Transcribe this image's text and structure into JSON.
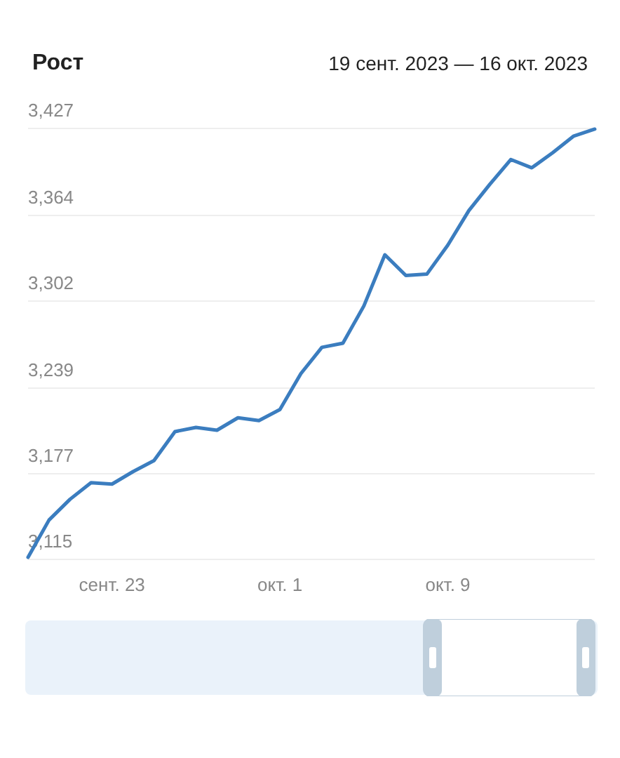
{
  "chart_data": {
    "type": "line",
    "title": "Рост",
    "subtitle": "19 сент. 2023 — 16 окт. 2023",
    "x": [
      "2023-09-19",
      "2023-09-20",
      "2023-09-21",
      "2023-09-22",
      "2023-09-23",
      "2023-09-24",
      "2023-09-25",
      "2023-09-26",
      "2023-09-27",
      "2023-09-28",
      "2023-09-29",
      "2023-09-30",
      "2023-10-01",
      "2023-10-02",
      "2023-10-03",
      "2023-10-04",
      "2023-10-05",
      "2023-10-06",
      "2023-10-07",
      "2023-10-08",
      "2023-10-09",
      "2023-10-10",
      "2023-10-11",
      "2023-10-12",
      "2023-10-13",
      "2023-10-14",
      "2023-10-15",
      "2023-10-16"
    ],
    "series": [
      {
        "color": "#3b7dbf",
        "values": [
          3116,
          3143,
          3158,
          3170,
          3169,
          3178,
          3186,
          3207,
          3210,
          3208,
          3217,
          3215,
          3223,
          3249,
          3268,
          3271,
          3298,
          3335,
          3320,
          3321,
          3342,
          3367,
          3386,
          3404,
          3398,
          3409,
          3421,
          3426
        ]
      }
    ],
    "xlim": [
      "2023-09-19",
      "2023-10-16"
    ],
    "xticks": [
      {
        "value": "2023-09-23",
        "label": "сент. 23"
      },
      {
        "value": "2023-10-01",
        "label": "окт. 1"
      },
      {
        "value": "2023-10-09",
        "label": "окт. 9"
      }
    ],
    "ylim": [
      3115,
      3427
    ],
    "yticks": [
      {
        "value": 3115,
        "label": "3,115"
      },
      {
        "value": 3177,
        "label": "3,177"
      },
      {
        "value": 3239,
        "label": "3,239"
      },
      {
        "value": 3302,
        "label": "3,302"
      },
      {
        "value": 3364,
        "label": "3,364"
      },
      {
        "value": 3427,
        "label": "3,427"
      }
    ],
    "grid": "y",
    "marker": "none",
    "line_style": "solid"
  }
}
